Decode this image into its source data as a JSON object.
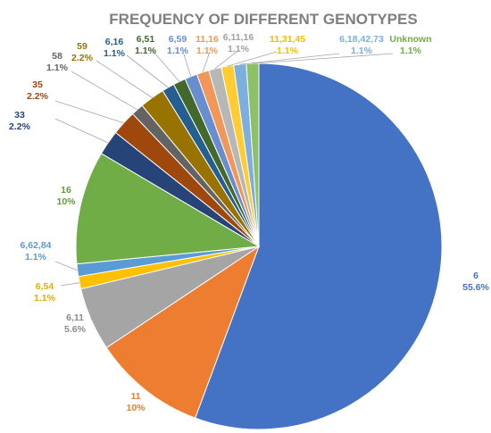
{
  "chart_data": {
    "type": "pie",
    "title": "FREQUENCY OF DIFFERENT GENOTYPES",
    "slices": [
      {
        "label": "6",
        "percent_label": "55.6%",
        "value": 55.6,
        "color": "#4472C4"
      },
      {
        "label": "11",
        "percent_label": "10%",
        "value": 10.0,
        "color": "#ED7D31"
      },
      {
        "label": "6,11",
        "percent_label": "5.6%",
        "value": 5.6,
        "color": "#A5A5A5"
      },
      {
        "label": "6,54",
        "percent_label": "1.1%",
        "value": 1.1,
        "color": "#FFC000"
      },
      {
        "label": "6,62,84",
        "percent_label": "1.1%",
        "value": 1.1,
        "color": "#5B9BD5"
      },
      {
        "label": "16",
        "percent_label": "10%",
        "value": 10.0,
        "color": "#70AD47"
      },
      {
        "label": "33",
        "percent_label": "2.2%",
        "value": 2.2,
        "color": "#264478"
      },
      {
        "label": "35",
        "percent_label": "2.2%",
        "value": 2.2,
        "color": "#9E480E"
      },
      {
        "label": "58",
        "percent_label": "1.1%",
        "value": 1.1,
        "color": "#636363"
      },
      {
        "label": "59",
        "percent_label": "2.2%",
        "value": 2.2,
        "color": "#997300"
      },
      {
        "label": "6,16",
        "percent_label": "1.1%",
        "value": 1.1,
        "color": "#255E91"
      },
      {
        "label": "6,51",
        "percent_label": "1.1%",
        "value": 1.1,
        "color": "#43682B"
      },
      {
        "label": "6,59",
        "percent_label": "1.1%",
        "value": 1.1,
        "color": "#698ED0"
      },
      {
        "label": "11,16",
        "percent_label": "1.1%",
        "value": 1.1,
        "color": "#F1975A"
      },
      {
        "label": "6,11,16",
        "percent_label": "1.1%",
        "value": 1.1,
        "color": "#B7B7B7"
      },
      {
        "label": "11,31,45",
        "percent_label": "1.1%",
        "value": 1.1,
        "color": "#FFCD33"
      },
      {
        "label": "6,18,42,73",
        "percent_label": "1.1%",
        "value": 1.1,
        "color": "#7CAFDD"
      },
      {
        "label": "Unknown",
        "percent_label": "1.1%",
        "value": 1.1,
        "color": "#8CC168"
      }
    ]
  }
}
